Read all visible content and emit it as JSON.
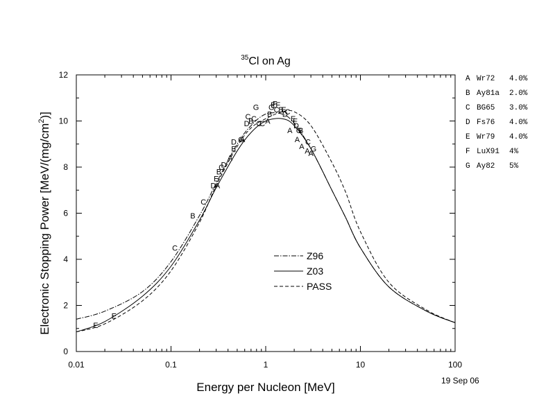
{
  "chart_data": {
    "type": "line",
    "title_sup": "35",
    "title_main": "Cl on Ag",
    "xlabel": "Energy per Nucleon [MeV]",
    "ylabel_main": "Electronic Stopping Power [MeV/(mg/cm",
    "ylabel_sup": "2",
    "ylabel_end": ")]",
    "date": "19 Sep 06",
    "xscale": "log",
    "xlim": [
      0.01,
      100
    ],
    "ylim": [
      0,
      12
    ],
    "grid": false,
    "x_ticks": [
      0.01,
      0.1,
      1,
      10,
      100
    ],
    "x_tick_labels": [
      "0.01",
      "0.1",
      "1",
      "10",
      "100"
    ],
    "y_ticks": [
      0,
      2,
      4,
      6,
      8,
      10,
      12
    ],
    "y_tick_labels": [
      "0",
      "2",
      "4",
      "6",
      "8",
      "10",
      "12"
    ],
    "series": [
      {
        "name": "Z96",
        "style": "dashdot",
        "x": [
          0.01,
          0.02,
          0.05,
          0.1,
          0.2,
          0.3,
          0.5,
          0.7,
          1,
          1.5,
          2,
          3,
          5,
          7,
          10,
          20,
          50,
          100
        ],
        "y": [
          1.4,
          1.75,
          2.6,
          3.9,
          5.9,
          7.3,
          9.0,
          9.8,
          10.3,
          10.3,
          9.9,
          8.8,
          7.0,
          5.8,
          4.5,
          2.8,
          1.75,
          1.25
        ]
      },
      {
        "name": "Z03",
        "style": "solid",
        "x": [
          0.01,
          0.02,
          0.05,
          0.1,
          0.2,
          0.3,
          0.5,
          0.7,
          1,
          1.5,
          2,
          3,
          5,
          7,
          10,
          20,
          50,
          100
        ],
        "y": [
          0.85,
          1.3,
          2.4,
          3.7,
          5.7,
          7.1,
          8.7,
          9.5,
          10.0,
          10.1,
          9.8,
          8.8,
          7.0,
          5.8,
          4.5,
          2.8,
          1.75,
          1.25
        ]
      },
      {
        "name": "PASS",
        "style": "dashed",
        "x": [
          0.01,
          0.02,
          0.05,
          0.1,
          0.2,
          0.3,
          0.5,
          0.7,
          1,
          1.5,
          2,
          3,
          5,
          7,
          10,
          20,
          50,
          100
        ],
        "y": [
          0.85,
          1.2,
          2.2,
          3.5,
          5.6,
          7.2,
          8.9,
          9.7,
          10.1,
          10.4,
          10.4,
          9.8,
          8.2,
          6.9,
          5.2,
          3.0,
          1.8,
          1.25
        ]
      }
    ],
    "legend_labels": [
      "Z96",
      "Z03",
      "PASS"
    ],
    "legend_placement": "lower-center",
    "data_points": [
      {
        "label": "E",
        "x": 0.016,
        "y": 1.15
      },
      {
        "label": "E",
        "x": 0.025,
        "y": 1.55
      },
      {
        "label": "C",
        "x": 0.11,
        "y": 4.5
      },
      {
        "label": "B",
        "x": 0.17,
        "y": 5.9
      },
      {
        "label": "C",
        "x": 0.22,
        "y": 6.5
      },
      {
        "label": "D",
        "x": 0.28,
        "y": 7.2
      },
      {
        "label": "A",
        "x": 0.31,
        "y": 7.2
      },
      {
        "label": "E",
        "x": 0.3,
        "y": 7.5
      },
      {
        "label": "B",
        "x": 0.32,
        "y": 7.8
      },
      {
        "label": "C",
        "x": 0.34,
        "y": 8.0
      },
      {
        "label": "D",
        "x": 0.36,
        "y": 8.1
      },
      {
        "label": "A",
        "x": 0.42,
        "y": 8.4
      },
      {
        "label": "E",
        "x": 0.46,
        "y": 8.8
      },
      {
        "label": "D",
        "x": 0.46,
        "y": 9.1
      },
      {
        "label": "G",
        "x": 0.55,
        "y": 9.2
      },
      {
        "label": "A",
        "x": 0.57,
        "y": 9.2
      },
      {
        "label": "D",
        "x": 0.63,
        "y": 9.9
      },
      {
        "label": "C",
        "x": 0.65,
        "y": 10.2
      },
      {
        "label": "B",
        "x": 0.7,
        "y": 10.0
      },
      {
        "label": "C",
        "x": 0.75,
        "y": 10.1
      },
      {
        "label": "G",
        "x": 0.79,
        "y": 10.6
      },
      {
        "label": "C",
        "x": 0.85,
        "y": 9.9
      },
      {
        "label": "C",
        "x": 0.92,
        "y": 9.9
      },
      {
        "label": "A",
        "x": 1.05,
        "y": 10.0
      },
      {
        "label": "B",
        "x": 1.1,
        "y": 10.3
      },
      {
        "label": "G",
        "x": 1.15,
        "y": 10.6
      },
      {
        "label": "E",
        "x": 1.2,
        "y": 10.7
      },
      {
        "label": "F",
        "x": 1.25,
        "y": 10.75
      },
      {
        "label": "C",
        "x": 1.3,
        "y": 10.5
      },
      {
        "label": "F",
        "x": 1.35,
        "y": 10.7
      },
      {
        "label": "B",
        "x": 1.45,
        "y": 10.5
      },
      {
        "label": "E",
        "x": 1.55,
        "y": 10.5
      },
      {
        "label": "D",
        "x": 1.6,
        "y": 10.3
      },
      {
        "label": "C",
        "x": 1.7,
        "y": 10.4
      },
      {
        "label": "A",
        "x": 1.8,
        "y": 9.6
      },
      {
        "label": "E",
        "x": 1.95,
        "y": 10.1
      },
      {
        "label": "F",
        "x": 2.05,
        "y": 10.0
      },
      {
        "label": "D",
        "x": 2.1,
        "y": 9.8
      },
      {
        "label": "G",
        "x": 2.25,
        "y": 9.6
      },
      {
        "label": "B",
        "x": 2.35,
        "y": 9.6
      },
      {
        "label": "A",
        "x": 2.15,
        "y": 9.2
      },
      {
        "label": "A",
        "x": 2.4,
        "y": 8.9
      },
      {
        "label": "A",
        "x": 2.75,
        "y": 8.7
      },
      {
        "label": "A",
        "x": 3.0,
        "y": 8.6
      },
      {
        "label": "C",
        "x": 2.8,
        "y": 9.1
      },
      {
        "label": "G",
        "x": 3.2,
        "y": 8.8
      }
    ],
    "data_key": [
      {
        "id": "A",
        "ref": "Wr72",
        "err": "4.0%"
      },
      {
        "id": "B",
        "ref": "Ay81a",
        "err": "2.0%"
      },
      {
        "id": "C",
        "ref": "BG65",
        "err": "3.0%"
      },
      {
        "id": "D",
        "ref": "Fs76",
        "err": "4.0%"
      },
      {
        "id": "E",
        "ref": "Wr79",
        "err": "4.0%"
      },
      {
        "id": "F",
        "ref": "LuX91",
        "err": "4%"
      },
      {
        "id": "G",
        "ref": "Ay82",
        "err": "5%"
      }
    ]
  }
}
